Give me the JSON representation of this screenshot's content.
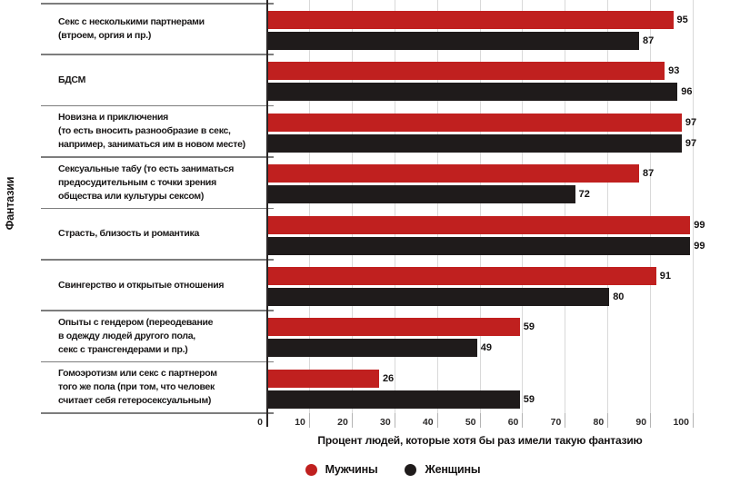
{
  "figure": {
    "xlabel": "Процент людей, которые хотя бы раз имели такую фантазию",
    "ylabel": "Фантазии"
  },
  "colors": {
    "men": "#c0201f",
    "women": "#1f1b1b",
    "gridline": "#d9d9d9",
    "separator": "#7d7d7d",
    "axis": "#2a2626"
  },
  "chart_data": {
    "type": "bar",
    "orientation": "horizontal",
    "title": "",
    "xlabel": "Процент людей, которые хотя бы раз имели такую фантазию",
    "ylabel": "Фантазии",
    "xlim": [
      0,
      100
    ],
    "xticks": [
      0,
      10,
      20,
      30,
      40,
      50,
      60,
      70,
      80,
      90,
      100
    ],
    "grid": true,
    "legend_position": "bottom",
    "value_labels": true,
    "categories": [
      "Секс с несколькими партнерами (втроем, оргия и пр.)",
      "БДСМ",
      "Новизна и приключения (то есть вносить разнообразие в секс, например, заниматься им в новом месте)",
      "Сексуальные табу (то есть заниматься предосудительным с точки зрения общества или культуры сексом)",
      "Страсть, близость и романтика",
      "Свингерство и открытые отношения",
      "Опыты с гендером (переодевание в одежду людей другого пола, секс с трансгендерами и пр.)",
      "Гомоэротизм или секс с партнером того же пола (при том, что человек считает себя гетеросексуальным)"
    ],
    "category_label_lines": [
      [
        "Секс с несколькими партнерами",
        "(втроем, оргия и пр.)"
      ],
      [
        "БДСМ"
      ],
      [
        "Новизна и приключения",
        "(то есть вносить разнообразие в секс,",
        "например, заниматься им в новом месте)"
      ],
      [
        "Сексуальные табу (то есть заниматься",
        "предосудительным с точки зрения",
        "общества или культуры сексом)"
      ],
      [
        "Страсть, близость и романтика"
      ],
      [
        "Свингерство и открытые отношения"
      ],
      [
        "Опыты с гендером (переодевание",
        "в одежду людей другого пола,",
        "секс с трансгендерами и пр.)"
      ],
      [
        "Гомоэротизм или секс с партнером",
        "того же пола (при том, что человек",
        "считает себя гетеросексуальным)"
      ]
    ],
    "series": [
      {
        "name": "Мужчины",
        "color": "#c0201f",
        "values": [
          95,
          93,
          97,
          87,
          99,
          91,
          59,
          26
        ]
      },
      {
        "name": "Женщины",
        "color": "#1f1b1b",
        "values": [
          87,
          96,
          97,
          72,
          99,
          80,
          49,
          59
        ]
      }
    ]
  }
}
